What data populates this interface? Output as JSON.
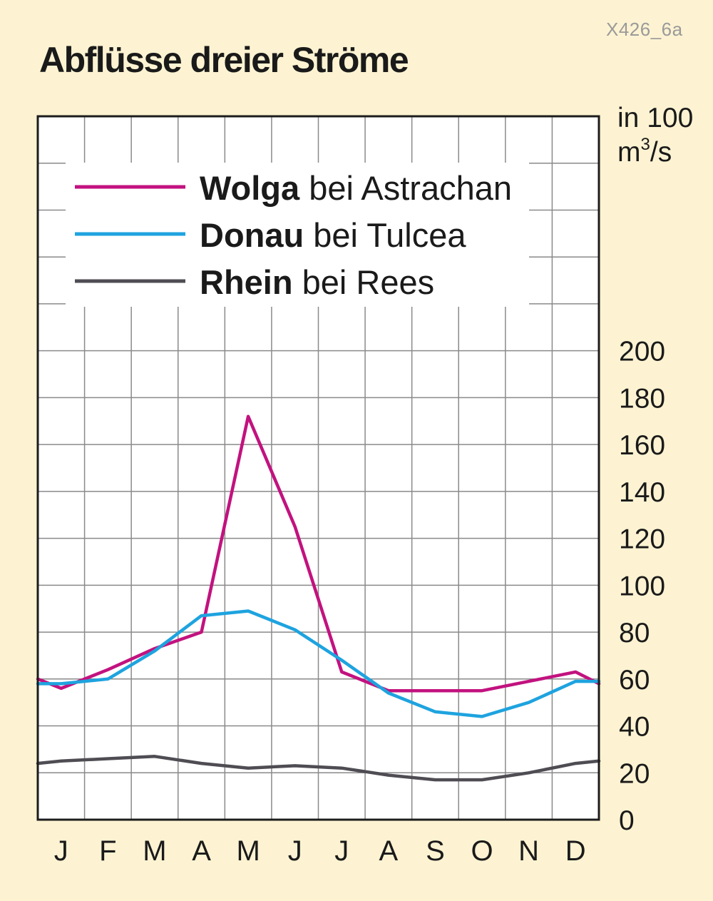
{
  "header": {
    "code": "X426_6a",
    "title": "Abflüsse dreier Ströme"
  },
  "chart_data": {
    "type": "line",
    "title": "Abflüsse dreier Ströme",
    "ylabel": "in 100 m³/s",
    "ylabel_line1": "in 100",
    "ylabel_line2_base": "m",
    "ylabel_line2_sup": "3",
    "ylabel_line2_tail": "/s",
    "xlabel": "",
    "categories": [
      "J",
      "F",
      "M",
      "A",
      "M",
      "J",
      "J",
      "A",
      "S",
      "O",
      "N",
      "D"
    ],
    "yticks": [
      0,
      20,
      40,
      60,
      80,
      100,
      120,
      140,
      160,
      180,
      200
    ],
    "ylim": [
      0,
      300
    ],
    "grid": true,
    "legend_position": "top-left",
    "series": [
      {
        "name": "Wolga",
        "suffix": " bei Astrachan",
        "color": "#c2127f",
        "x": [
          0,
          0.5,
          1.5,
          2.5,
          3.5,
          4.5,
          5.5,
          6.5,
          7.5,
          8.5,
          9.5,
          10.5,
          11.5,
          12
        ],
        "values": [
          60,
          56,
          64,
          73,
          80,
          172,
          125,
          63,
          55,
          55,
          55,
          59,
          63,
          58
        ]
      },
      {
        "name": "Donau",
        "suffix": " bei Tulcea",
        "color": "#1ea3df",
        "x": [
          0,
          0.5,
          1.5,
          2.5,
          3.5,
          4.5,
          5.5,
          6.5,
          7.5,
          8.5,
          9.5,
          10.5,
          11.5,
          12
        ],
        "values": [
          58,
          58,
          60,
          72,
          87,
          89,
          81,
          68,
          54,
          46,
          44,
          50,
          59,
          59
        ]
      },
      {
        "name": "Rhein",
        "suffix": " bei Rees",
        "color": "#4f4d53",
        "x": [
          0,
          0.5,
          1.5,
          2.5,
          3.5,
          4.5,
          5.5,
          6.5,
          7.5,
          8.5,
          9.5,
          10.5,
          11.5,
          12
        ],
        "values": [
          24,
          25,
          26,
          27,
          24,
          22,
          23,
          22,
          19,
          17,
          17,
          20,
          24,
          25
        ]
      }
    ]
  }
}
